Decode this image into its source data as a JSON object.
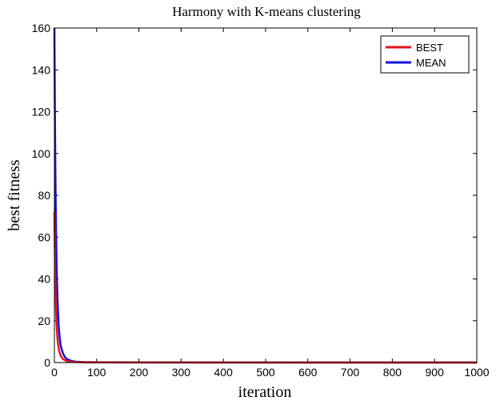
{
  "chart_data": {
    "type": "line",
    "title": "Harmony with K-means clustering",
    "xlabel": "iteration",
    "ylabel": "best fitness",
    "xlim": [
      0,
      1000
    ],
    "ylim": [
      0,
      160
    ],
    "xticks": [
      0,
      100,
      200,
      300,
      400,
      500,
      600,
      700,
      800,
      900,
      1000
    ],
    "yticks": [
      0,
      20,
      40,
      60,
      80,
      100,
      120,
      140,
      160
    ],
    "grid": false,
    "legend_position": "top-right",
    "series": [
      {
        "name": "BEST",
        "color": "#e0141e",
        "x": [
          0,
          1,
          2,
          3,
          4,
          5,
          6,
          8,
          10,
          12,
          15,
          20,
          25,
          30,
          40,
          50,
          70,
          100,
          200,
          400,
          600,
          800,
          1000
        ],
        "y": [
          72,
          55,
          42,
          32,
          25,
          19,
          15,
          10,
          7,
          5,
          3.2,
          1.8,
          1.1,
          0.7,
          0.4,
          0.25,
          0.15,
          0.1,
          0.05,
          0.03,
          0.02,
          0.02,
          0.02
        ]
      },
      {
        "name": "MEAN",
        "color": "#1414d8",
        "x": [
          0,
          1,
          2,
          3,
          4,
          5,
          6,
          8,
          10,
          12,
          15,
          20,
          25,
          30,
          40,
          50,
          70,
          100,
          200,
          400,
          600,
          800,
          1000
        ],
        "y": [
          160,
          125,
          98,
          78,
          62,
          50,
          40,
          27,
          18,
          13,
          8,
          4.5,
          2.6,
          1.6,
          0.8,
          0.45,
          0.25,
          0.15,
          0.08,
          0.05,
          0.04,
          0.04,
          0.04
        ]
      }
    ]
  }
}
